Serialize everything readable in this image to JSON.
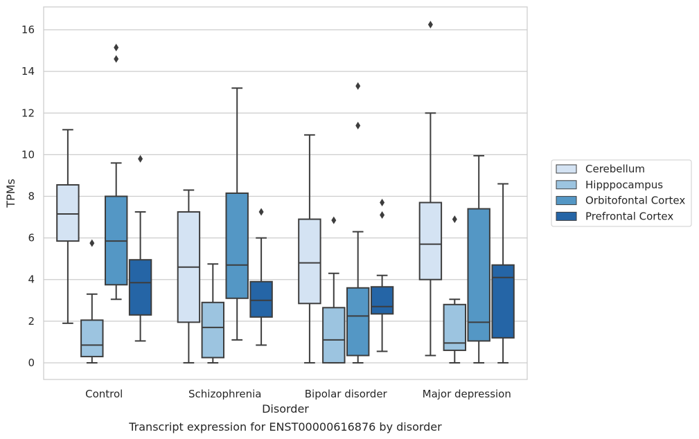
{
  "caption": "Transcript expression for ENST00000616876 by disorder",
  "chart_data": {
    "type": "box",
    "xlabel": "Disorder",
    "ylabel": "TPMs",
    "ylim": [
      -0.8,
      17.1
    ],
    "yticks": [
      0,
      2,
      4,
      6,
      8,
      10,
      12,
      14,
      16
    ],
    "grid": "horizontal",
    "legend_position": "right",
    "categories": [
      "Control",
      "Schizophrenia",
      "Bipolar disorder",
      "Major depression"
    ],
    "series": [
      {
        "name": "Cerebellum",
        "color": "#d4e3f3",
        "boxes": [
          {
            "whisker_low": 1.9,
            "q1": 5.85,
            "median": 7.15,
            "q3": 8.55,
            "whisker_high": 11.2,
            "outliers": []
          },
          {
            "whisker_low": 0.0,
            "q1": 1.95,
            "median": 4.6,
            "q3": 7.25,
            "whisker_high": 8.3,
            "outliers": []
          },
          {
            "whisker_low": 0.0,
            "q1": 2.85,
            "median": 4.8,
            "q3": 6.9,
            "whisker_high": 10.95,
            "outliers": []
          },
          {
            "whisker_low": 0.35,
            "q1": 4.0,
            "median": 5.7,
            "q3": 7.7,
            "whisker_high": 12.0,
            "outliers": [
              16.25
            ]
          }
        ]
      },
      {
        "name": "Hipppocampus",
        "color": "#9cc4e0",
        "boxes": [
          {
            "whisker_low": 0.0,
            "q1": 0.3,
            "median": 0.85,
            "q3": 2.05,
            "whisker_high": 3.3,
            "outliers": [
              5.75
            ]
          },
          {
            "whisker_low": 0.0,
            "q1": 0.25,
            "median": 1.7,
            "q3": 2.9,
            "whisker_high": 4.75,
            "outliers": []
          },
          {
            "whisker_low": 0.0,
            "q1": 0.0,
            "median": 1.1,
            "q3": 2.65,
            "whisker_high": 4.3,
            "outliers": [
              6.85
            ]
          },
          {
            "whisker_low": 0.0,
            "q1": 0.6,
            "median": 0.95,
            "q3": 2.8,
            "whisker_high": 3.05,
            "outliers": [
              6.9
            ]
          }
        ]
      },
      {
        "name": "Orbitofontal Cortex",
        "color": "#5497c5",
        "boxes": [
          {
            "whisker_low": 3.05,
            "q1": 3.75,
            "median": 5.85,
            "q3": 8.0,
            "whisker_high": 9.6,
            "outliers": [
              14.6,
              15.15
            ]
          },
          {
            "whisker_low": 1.1,
            "q1": 3.1,
            "median": 4.7,
            "q3": 8.15,
            "whisker_high": 13.2,
            "outliers": []
          },
          {
            "whisker_low": 0.0,
            "q1": 0.35,
            "median": 2.25,
            "q3": 3.6,
            "whisker_high": 6.3,
            "outliers": [
              11.4,
              13.3
            ]
          },
          {
            "whisker_low": 0.0,
            "q1": 1.05,
            "median": 1.95,
            "q3": 7.4,
            "whisker_high": 9.95,
            "outliers": []
          }
        ]
      },
      {
        "name": "Prefrontal Cortex",
        "color": "#2565a6",
        "boxes": [
          {
            "whisker_low": 1.05,
            "q1": 2.3,
            "median": 3.85,
            "q3": 4.95,
            "whisker_high": 7.25,
            "outliers": [
              9.8
            ]
          },
          {
            "whisker_low": 0.85,
            "q1": 2.2,
            "median": 3.0,
            "q3": 3.9,
            "whisker_high": 6.0,
            "outliers": [
              7.25
            ]
          },
          {
            "whisker_low": 0.55,
            "q1": 2.35,
            "median": 2.7,
            "q3": 3.65,
            "whisker_high": 4.2,
            "outliers": [
              7.1,
              7.7
            ]
          },
          {
            "whisker_low": 0.0,
            "q1": 1.2,
            "median": 4.1,
            "q3": 4.7,
            "whisker_high": 8.6,
            "outliers": []
          }
        ]
      }
    ]
  }
}
